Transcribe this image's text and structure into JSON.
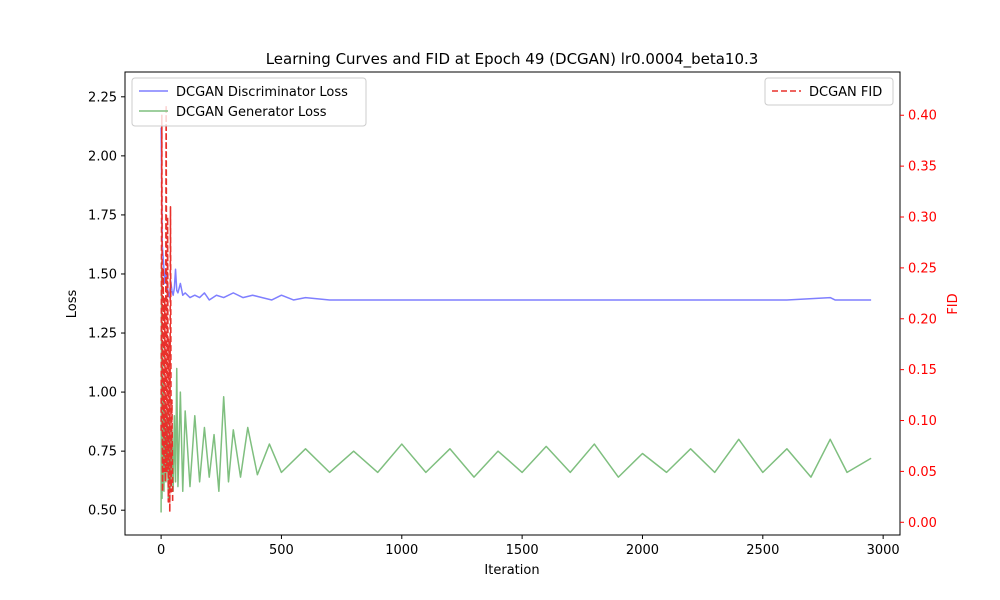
{
  "chart_data": {
    "type": "line",
    "title": "Learning Curves and FID at Epoch 49 (DCGAN) lr0.0004_beta10.3",
    "xlabel": "Iteration",
    "ylabel_left": "Loss",
    "ylabel_right": "FID",
    "xlim": [
      -150,
      3070
    ],
    "ylim_left": [
      0.395,
      2.355
    ],
    "ylim_right": [
      -0.0125,
      0.4425
    ],
    "x_ticks": [
      0,
      500,
      1000,
      1500,
      2000,
      2500,
      3000
    ],
    "y_left_ticks": [
      0.5,
      0.75,
      1.0,
      1.25,
      1.5,
      1.75,
      2.0,
      2.25
    ],
    "y_right_ticks": [
      0.0,
      0.05,
      0.1,
      0.15,
      0.2,
      0.25,
      0.3,
      0.35,
      0.4
    ],
    "grid": false,
    "colors": {
      "discriminator": "#7f7fff",
      "generator": "#7fbf7f",
      "fid": "#e8302b",
      "right_axis": "#ff0000"
    },
    "series": [
      {
        "name": "DCGAN Discriminator Loss",
        "axis": "left",
        "style": "solid",
        "x": [
          0,
          5,
          10,
          15,
          20,
          25,
          30,
          35,
          40,
          45,
          50,
          55,
          60,
          65,
          70,
          80,
          90,
          100,
          120,
          140,
          160,
          180,
          200,
          230,
          260,
          300,
          340,
          380,
          420,
          460,
          500,
          550,
          600,
          700,
          800,
          900,
          1000,
          1200,
          1400,
          1600,
          1800,
          2000,
          2200,
          2400,
          2600,
          2780,
          2800,
          2950
        ],
        "y": [
          2.12,
          1.62,
          1.55,
          1.46,
          1.52,
          1.45,
          1.42,
          1.4,
          1.47,
          1.43,
          1.41,
          1.44,
          1.52,
          1.43,
          1.42,
          1.46,
          1.41,
          1.42,
          1.4,
          1.41,
          1.4,
          1.42,
          1.39,
          1.41,
          1.4,
          1.42,
          1.4,
          1.41,
          1.4,
          1.39,
          1.41,
          1.39,
          1.4,
          1.39,
          1.39,
          1.39,
          1.39,
          1.39,
          1.39,
          1.39,
          1.39,
          1.39,
          1.39,
          1.39,
          1.39,
          1.4,
          1.39,
          1.39
        ]
      },
      {
        "name": "DCGAN Generator Loss",
        "axis": "left",
        "style": "solid",
        "x": [
          0,
          2,
          4,
          6,
          8,
          10,
          12,
          15,
          20,
          25,
          30,
          35,
          40,
          45,
          50,
          55,
          60,
          65,
          70,
          80,
          90,
          100,
          120,
          140,
          160,
          180,
          200,
          220,
          240,
          260,
          280,
          300,
          330,
          360,
          400,
          450,
          500,
          600,
          700,
          800,
          900,
          1000,
          1100,
          1200,
          1300,
          1400,
          1500,
          1600,
          1700,
          1800,
          1900,
          2000,
          2100,
          2200,
          2300,
          2400,
          2500,
          2600,
          2700,
          2780,
          2850,
          2950
        ],
        "y": [
          0.49,
          1.55,
          0.55,
          1.2,
          0.6,
          1.05,
          0.58,
          0.95,
          0.62,
          0.92,
          0.55,
          0.88,
          0.6,
          0.84,
          0.58,
          0.9,
          0.62,
          1.1,
          0.6,
          1.0,
          0.58,
          0.92,
          0.6,
          0.9,
          0.62,
          0.85,
          0.64,
          0.82,
          0.58,
          0.98,
          0.62,
          0.84,
          0.64,
          0.85,
          0.65,
          0.78,
          0.66,
          0.76,
          0.66,
          0.75,
          0.66,
          0.78,
          0.66,
          0.76,
          0.64,
          0.75,
          0.66,
          0.77,
          0.66,
          0.78,
          0.64,
          0.74,
          0.66,
          0.76,
          0.66,
          0.8,
          0.66,
          0.76,
          0.64,
          0.8,
          0.66,
          0.72
        ]
      },
      {
        "name": "DCGAN FID",
        "axis": "right",
        "style": "dashed",
        "x": [
          0,
          3,
          6,
          9,
          12,
          15,
          18,
          21,
          24,
          27,
          30,
          33,
          36,
          39,
          42,
          45,
          48
        ],
        "y": [
          0.09,
          0.4,
          0.03,
          0.25,
          0.05,
          0.22,
          0.04,
          0.41,
          0.05,
          0.3,
          0.02,
          0.18,
          0.01,
          0.31,
          0.03,
          0.12,
          0.02
        ]
      }
    ],
    "legend_left_position": "upper-left",
    "legend_right_position": "upper-right"
  }
}
